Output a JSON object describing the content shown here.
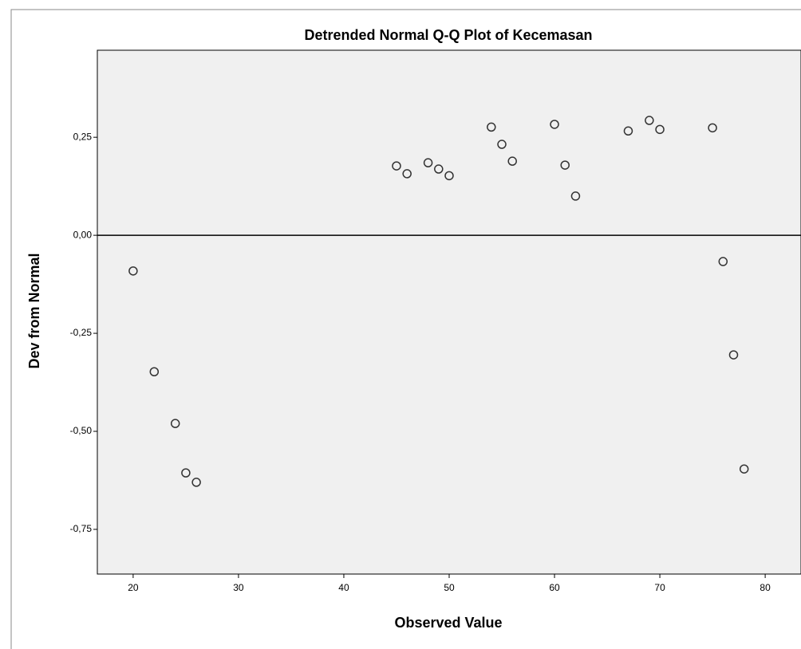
{
  "chart_data": {
    "type": "scatter",
    "title": "Detrended Normal Q-Q Plot of Kecemasan",
    "xlabel": "Observed Value",
    "ylabel": "Dev from Normal",
    "x": [
      20,
      22,
      24,
      25,
      26,
      45,
      46,
      48,
      49,
      50,
      54,
      55,
      56,
      60,
      61,
      62,
      67,
      69,
      70,
      75,
      76,
      77,
      78
    ],
    "values": [
      -0.091,
      -0.348,
      -0.48,
      -0.606,
      -0.63,
      0.177,
      0.157,
      0.185,
      0.169,
      0.152,
      0.276,
      0.232,
      0.189,
      0.283,
      0.179,
      0.1,
      0.266,
      0.293,
      0.27,
      0.274,
      -0.067,
      -0.305,
      -0.596
    ],
    "color": "#333333",
    "reference_line": 0,
    "xlim": [
      16.6,
      83.4
    ],
    "ylim": [
      -0.864,
      0.472
    ],
    "xticks": [
      20,
      30,
      40,
      50,
      60,
      70,
      80
    ],
    "yticks": [
      {
        "value": -0.75,
        "label": "-0,75"
      },
      {
        "value": -0.5,
        "label": "-0,50"
      },
      {
        "value": -0.25,
        "label": "-0,25"
      },
      {
        "value": 0,
        "label": "0,00"
      },
      {
        "value": 0.25,
        "label": "0,25"
      }
    ]
  }
}
